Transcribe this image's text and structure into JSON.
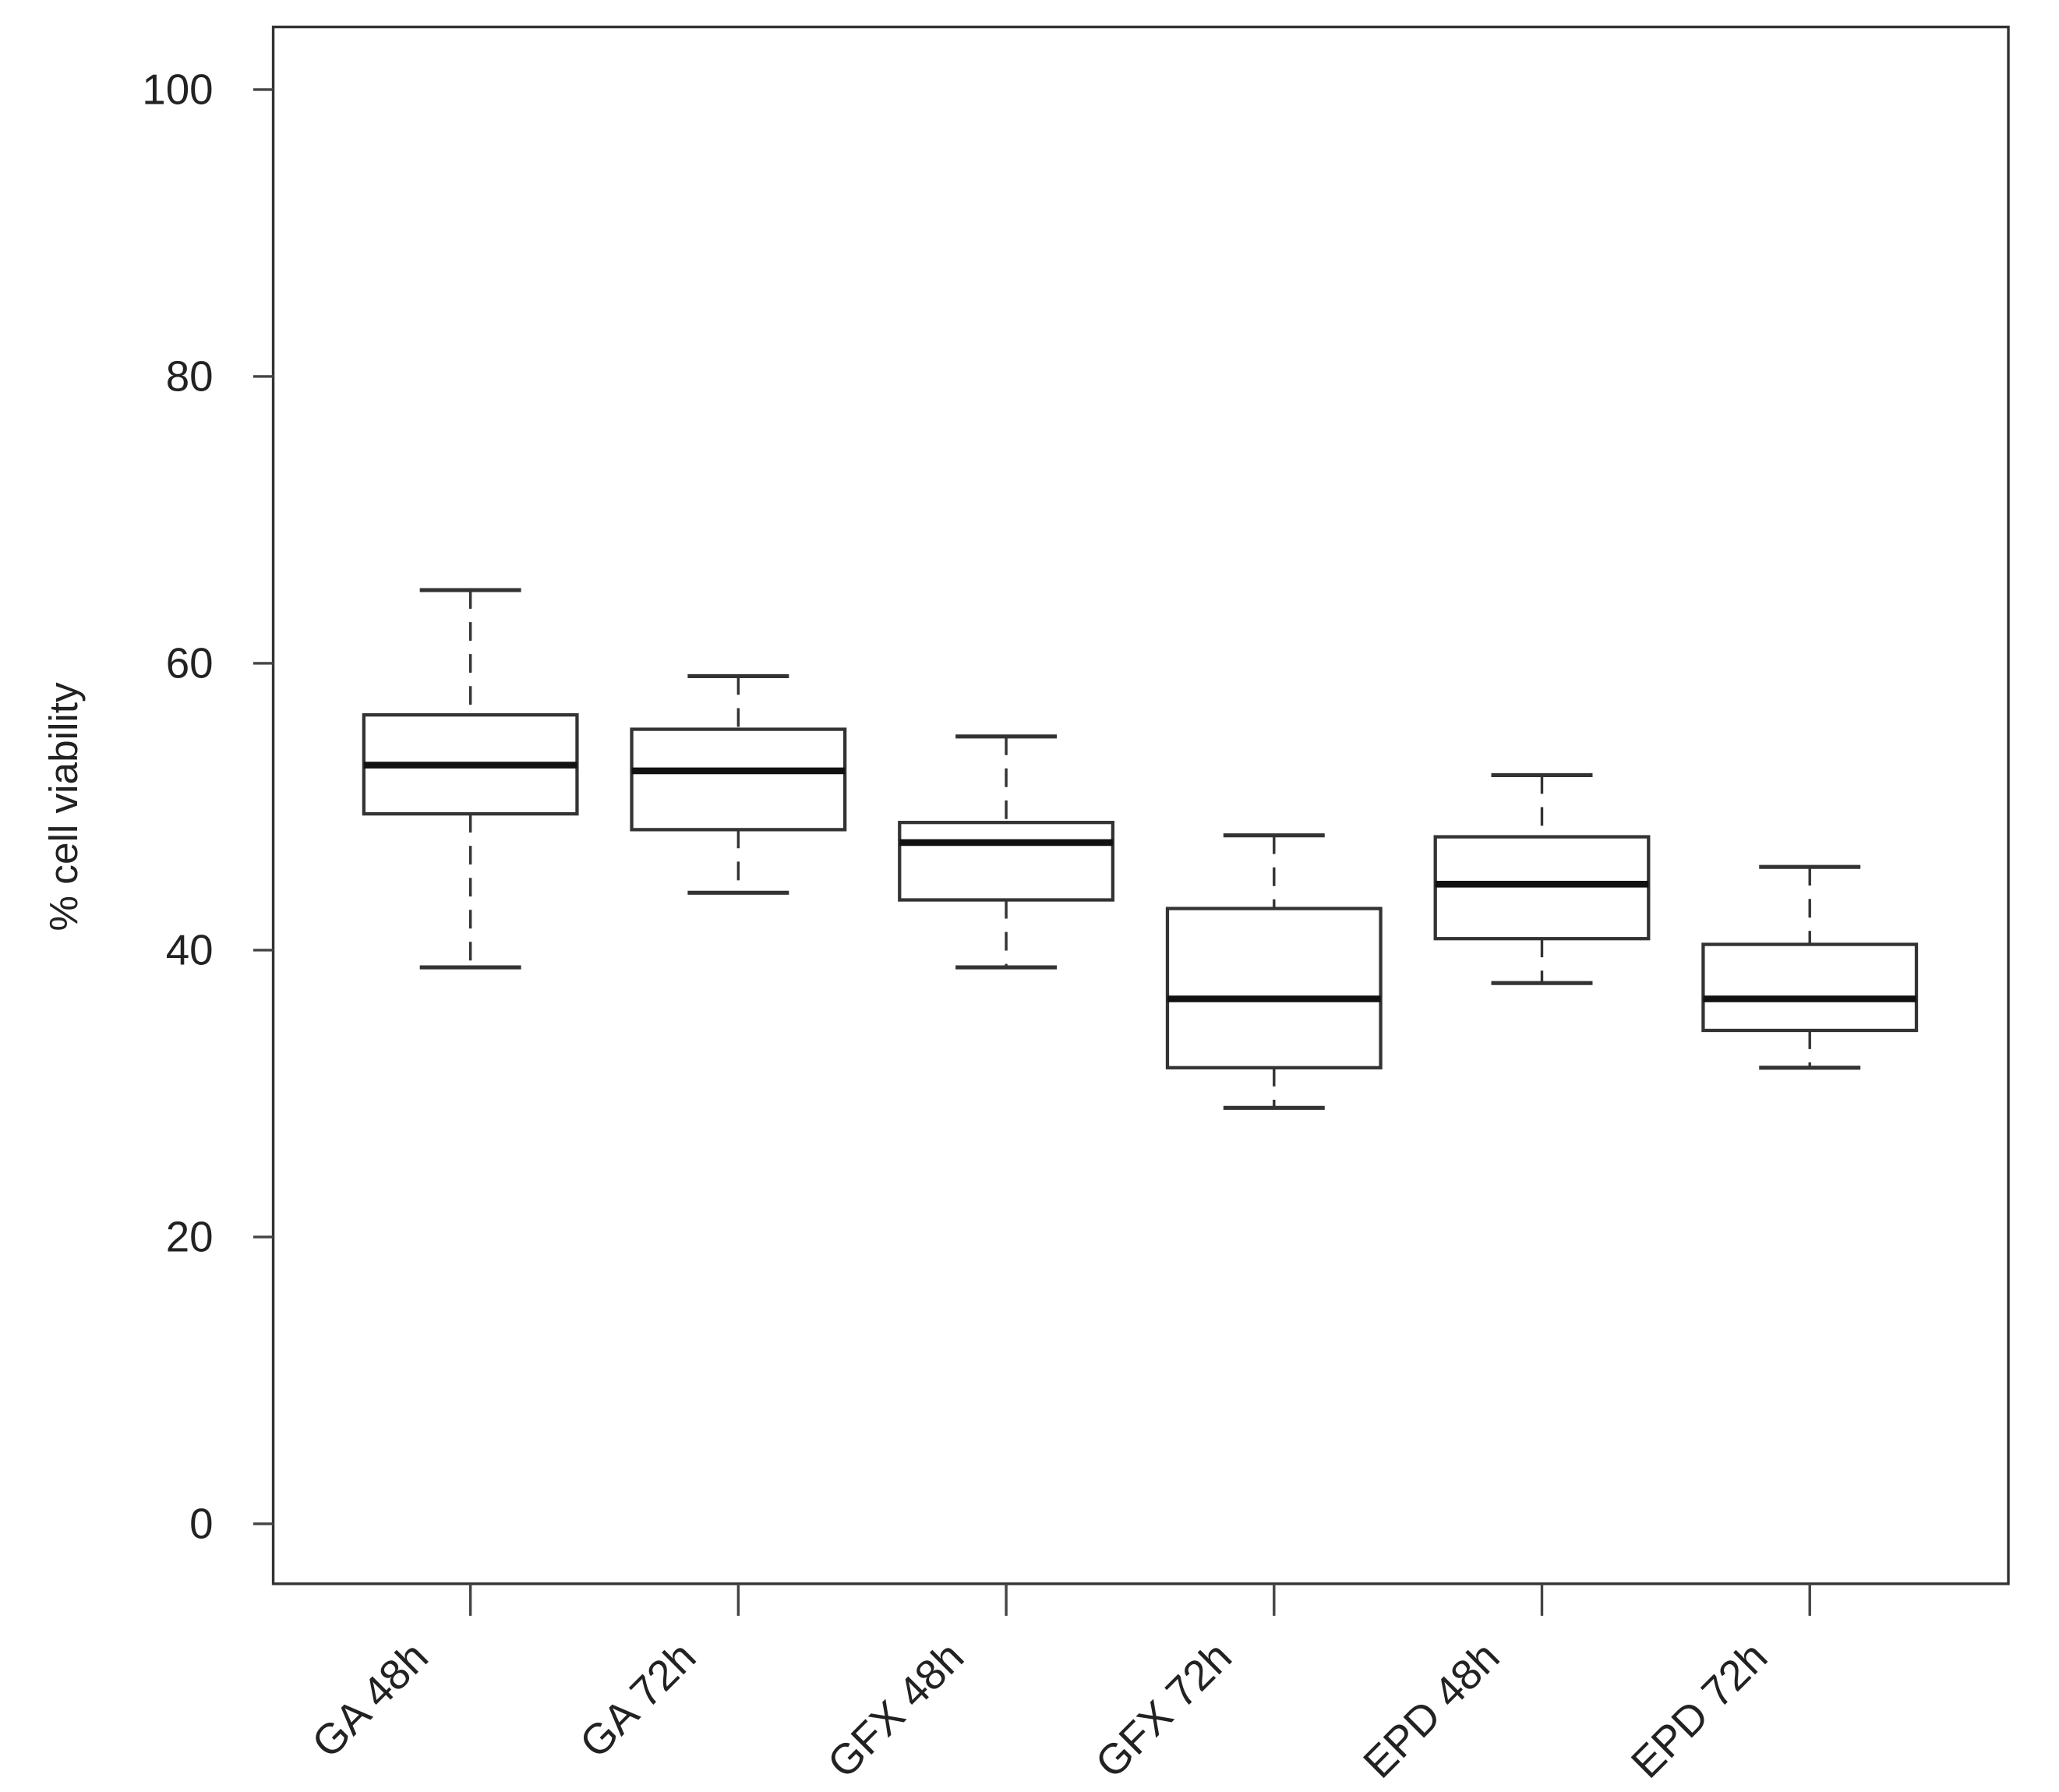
{
  "chart_data": {
    "type": "boxplot",
    "title": "",
    "xlabel": "",
    "ylabel": "% cell viability",
    "ylim": [
      -4,
      104
    ],
    "yticks": [
      0,
      20,
      40,
      60,
      80,
      100
    ],
    "yticklabels": [
      "0",
      "20",
      "40",
      "60",
      "80",
      "100"
    ],
    "grid": false,
    "categories": [
      "GA 48h",
      "GA 72h",
      "GFX 48h",
      "GFX 72h",
      "EPD 48h",
      "EPD 72h"
    ],
    "boxes": [
      {
        "min": 38.8,
        "q1": 49.5,
        "median": 52.9,
        "q3": 56.4,
        "max": 65.1
      },
      {
        "min": 44.0,
        "q1": 48.4,
        "median": 52.5,
        "q3": 55.4,
        "max": 59.1
      },
      {
        "min": 38.8,
        "q1": 43.5,
        "median": 47.5,
        "q3": 48.9,
        "max": 54.9
      },
      {
        "min": 29.0,
        "q1": 31.8,
        "median": 36.6,
        "q3": 42.9,
        "max": 48.0
      },
      {
        "min": 37.7,
        "q1": 40.8,
        "median": 44.6,
        "q3": 47.9,
        "max": 52.2
      },
      {
        "min": 31.8,
        "q1": 34.4,
        "median": 36.6,
        "q3": 40.4,
        "max": 45.8
      }
    ],
    "colors": {
      "box_fill": "#ffffff",
      "stroke": "#333333",
      "median": "#111111"
    }
  }
}
